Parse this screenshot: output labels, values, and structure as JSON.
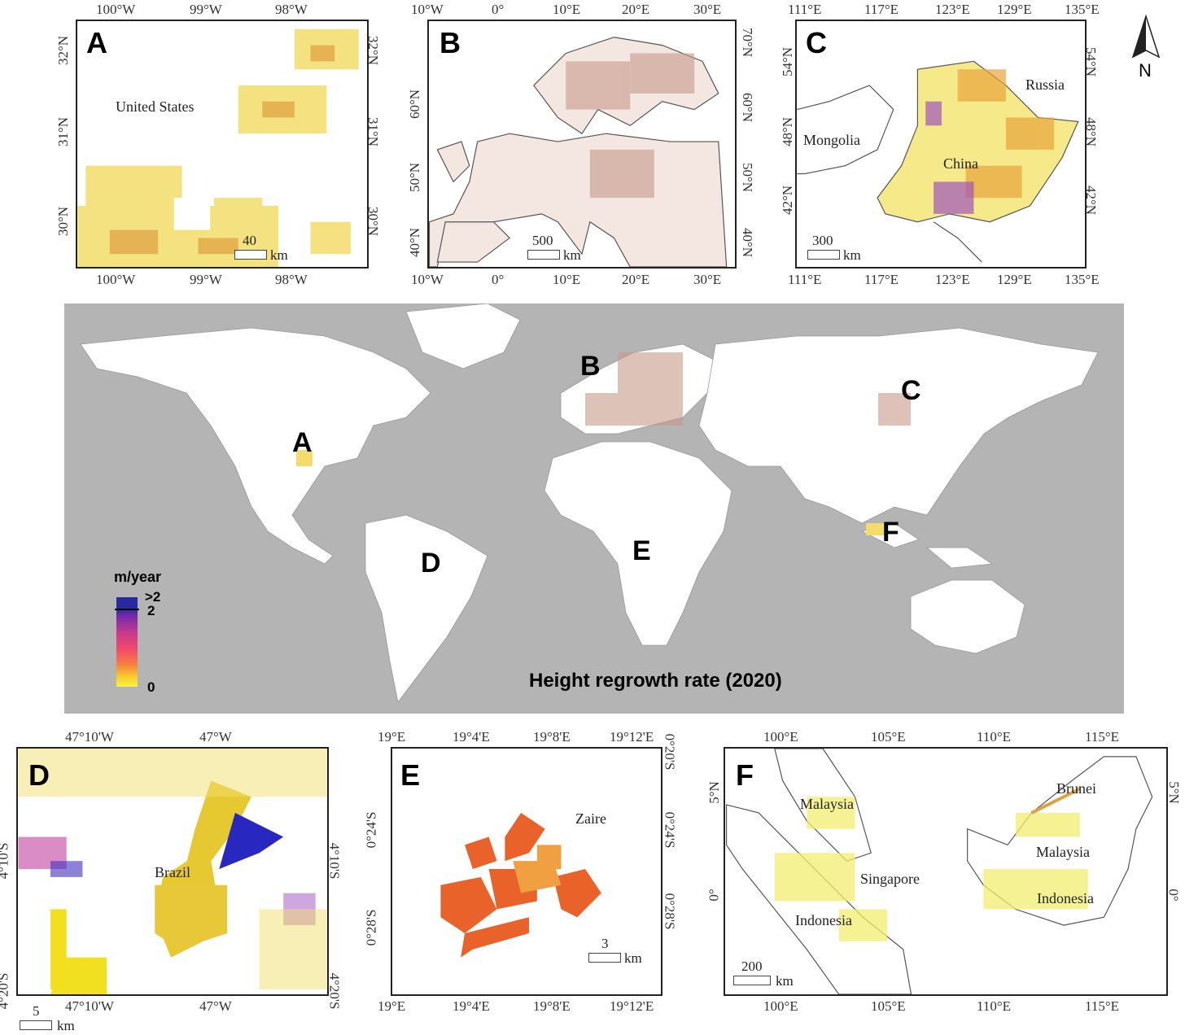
{
  "world": {
    "title": "Height regrowth rate (2020)",
    "labels": [
      "A",
      "B",
      "C",
      "D",
      "E",
      "F"
    ],
    "legend": {
      "unit": "m/year",
      "max": ">2",
      "mid": "2",
      "min": "0",
      "colors": [
        "#2a2aa0",
        "#7a2aa8",
        "#c83a8c",
        "#f04a6a",
        "#f7813d",
        "#fad02c",
        "#f5f540"
      ]
    },
    "ocean_color": "#b4b4b4",
    "land_color": "#ffffff"
  },
  "north_arrow": {
    "label": "N"
  },
  "panels": {
    "A": {
      "label": "A",
      "top_ticks": [
        "100°W",
        "99°W",
        "98°W"
      ],
      "bottom_ticks": [
        "100°W",
        "99°W",
        "98°W"
      ],
      "left_ticks": [
        "32°N",
        "31°N",
        "30°N"
      ],
      "right_ticks": [
        "32°N",
        "31°N",
        "30°N"
      ],
      "places": [
        "United States"
      ],
      "scale": {
        "value": "40",
        "unit": "km"
      }
    },
    "B": {
      "label": "B",
      "top_ticks": [
        "10°W",
        "0°",
        "10°E",
        "20°E",
        "30°E"
      ],
      "bottom_ticks": [
        "10°W",
        "0°",
        "10°E",
        "20°E",
        "30°E"
      ],
      "left_ticks": [
        "60°N",
        "50°N",
        "40°N"
      ],
      "right_ticks": [
        "70°N",
        "60°N",
        "50°N",
        "40°N"
      ],
      "scale": {
        "value": "500",
        "unit": "km"
      }
    },
    "C": {
      "label": "C",
      "top_ticks": [
        "111°E",
        "117°E",
        "123°E",
        "129°E",
        "135°E"
      ],
      "bottom_ticks": [
        "111°E",
        "117°E",
        "123°E",
        "129°E",
        "135°E"
      ],
      "left_ticks": [
        "54°N",
        "48°N",
        "42°N"
      ],
      "right_ticks": [
        "54°N",
        "48°N",
        "42°N"
      ],
      "places": [
        "Russia",
        "Mongolia",
        "China"
      ],
      "scale": {
        "value": "300",
        "unit": "km"
      }
    },
    "D": {
      "label": "D",
      "top_ticks": [
        "47°10'W",
        "47°W"
      ],
      "bottom_ticks": [
        "47°10'W",
        "47°W"
      ],
      "left_ticks": [
        "4°10'S",
        "4°20'S"
      ],
      "right_ticks": [
        "4°10'S",
        "4°20'S"
      ],
      "places": [
        "Brazil"
      ],
      "scale": {
        "value": "5",
        "unit": "km"
      }
    },
    "E": {
      "label": "E",
      "top_ticks": [
        "19°E",
        "19°4'E",
        "19°8'E",
        "19°12'E"
      ],
      "bottom_ticks": [
        "19°E",
        "19°4'E",
        "19°8'E",
        "19°12'E"
      ],
      "right_ticks": [
        "0°20'S",
        "0°24'S",
        "0°28'S"
      ],
      "left_ticks": [
        "0°24'S",
        "0°28'S"
      ],
      "places": [
        "Zaire"
      ],
      "scale": {
        "value": "3",
        "unit": "km"
      }
    },
    "F": {
      "label": "F",
      "top_ticks": [
        "100°E",
        "105°E",
        "110°E",
        "115°E"
      ],
      "bottom_ticks": [
        "100°E",
        "105°E",
        "110°E",
        "115°E"
      ],
      "left_ticks": [
        "5°N",
        "0°"
      ],
      "right_ticks": [
        "5°N",
        "0°"
      ],
      "places": [
        "Malaysia",
        "Brunei",
        "Malaysia",
        "Singapore",
        "Indonesia",
        "Indonesia"
      ],
      "scale": {
        "value": "200",
        "unit": "km"
      }
    }
  }
}
